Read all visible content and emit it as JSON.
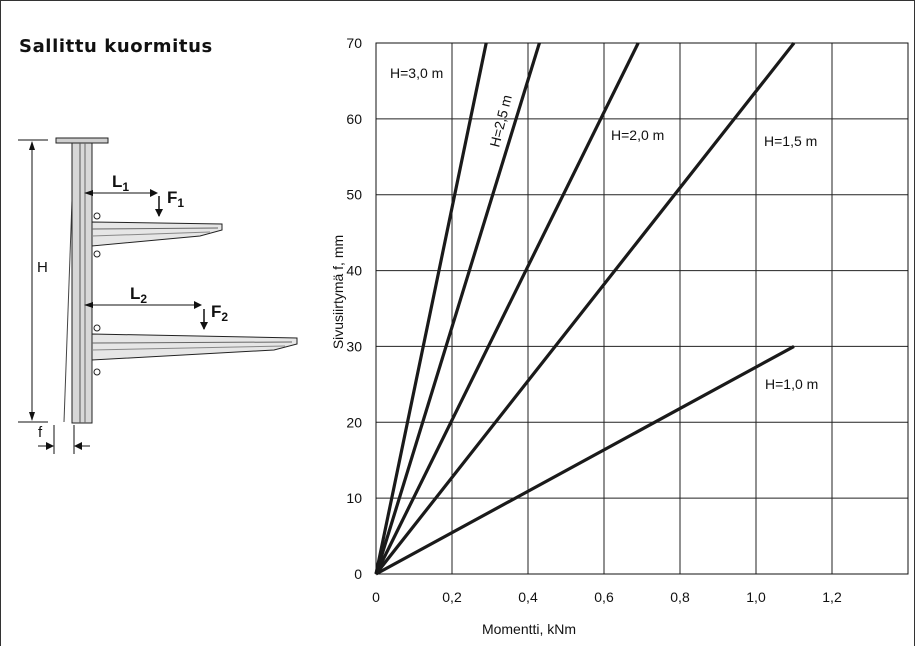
{
  "page_title": "Sallittu kuormitus",
  "diagram": {
    "height_label": "H",
    "deflection_label": "f",
    "arm1_length_label": "L",
    "arm1_length_sub": "1",
    "arm1_force_label": "F",
    "arm1_force_sub": "1",
    "arm2_length_label": "L",
    "arm2_length_sub": "2",
    "arm2_force_label": "F",
    "arm2_force_sub": "2"
  },
  "chart_data": {
    "type": "line",
    "xlabel": "Momentti, kNm",
    "ylabel": "Sivusiirtymä f, mm",
    "xlim": [
      0,
      1.4
    ],
    "ylim": [
      0,
      70
    ],
    "x_ticks": [
      0,
      0.2,
      0.4,
      0.6,
      0.8,
      1.0,
      1.2
    ],
    "x_tick_labels": [
      "0",
      "0,2",
      "0,4",
      "0,6",
      "0,8",
      "1,0",
      "1,2"
    ],
    "y_ticks": [
      0,
      10,
      20,
      30,
      40,
      50,
      60,
      70
    ],
    "y_tick_labels": [
      "0",
      "10",
      "20",
      "30",
      "40",
      "50",
      "60",
      "70"
    ],
    "grid": true,
    "series": [
      {
        "name": "H=3,0 m",
        "x": [
          0,
          0.29
        ],
        "y": [
          0,
          70
        ]
      },
      {
        "name": "H=2,5 m",
        "x": [
          0,
          0.43
        ],
        "y": [
          0,
          70
        ]
      },
      {
        "name": "H=2,0 m",
        "x": [
          0,
          0.69
        ],
        "y": [
          0,
          70
        ]
      },
      {
        "name": "H=1,5 m",
        "x": [
          0,
          1.1
        ],
        "y": [
          0,
          70
        ]
      },
      {
        "name": "H=1,0 m",
        "x": [
          0,
          1.1
        ],
        "y": [
          0,
          30
        ]
      }
    ]
  }
}
